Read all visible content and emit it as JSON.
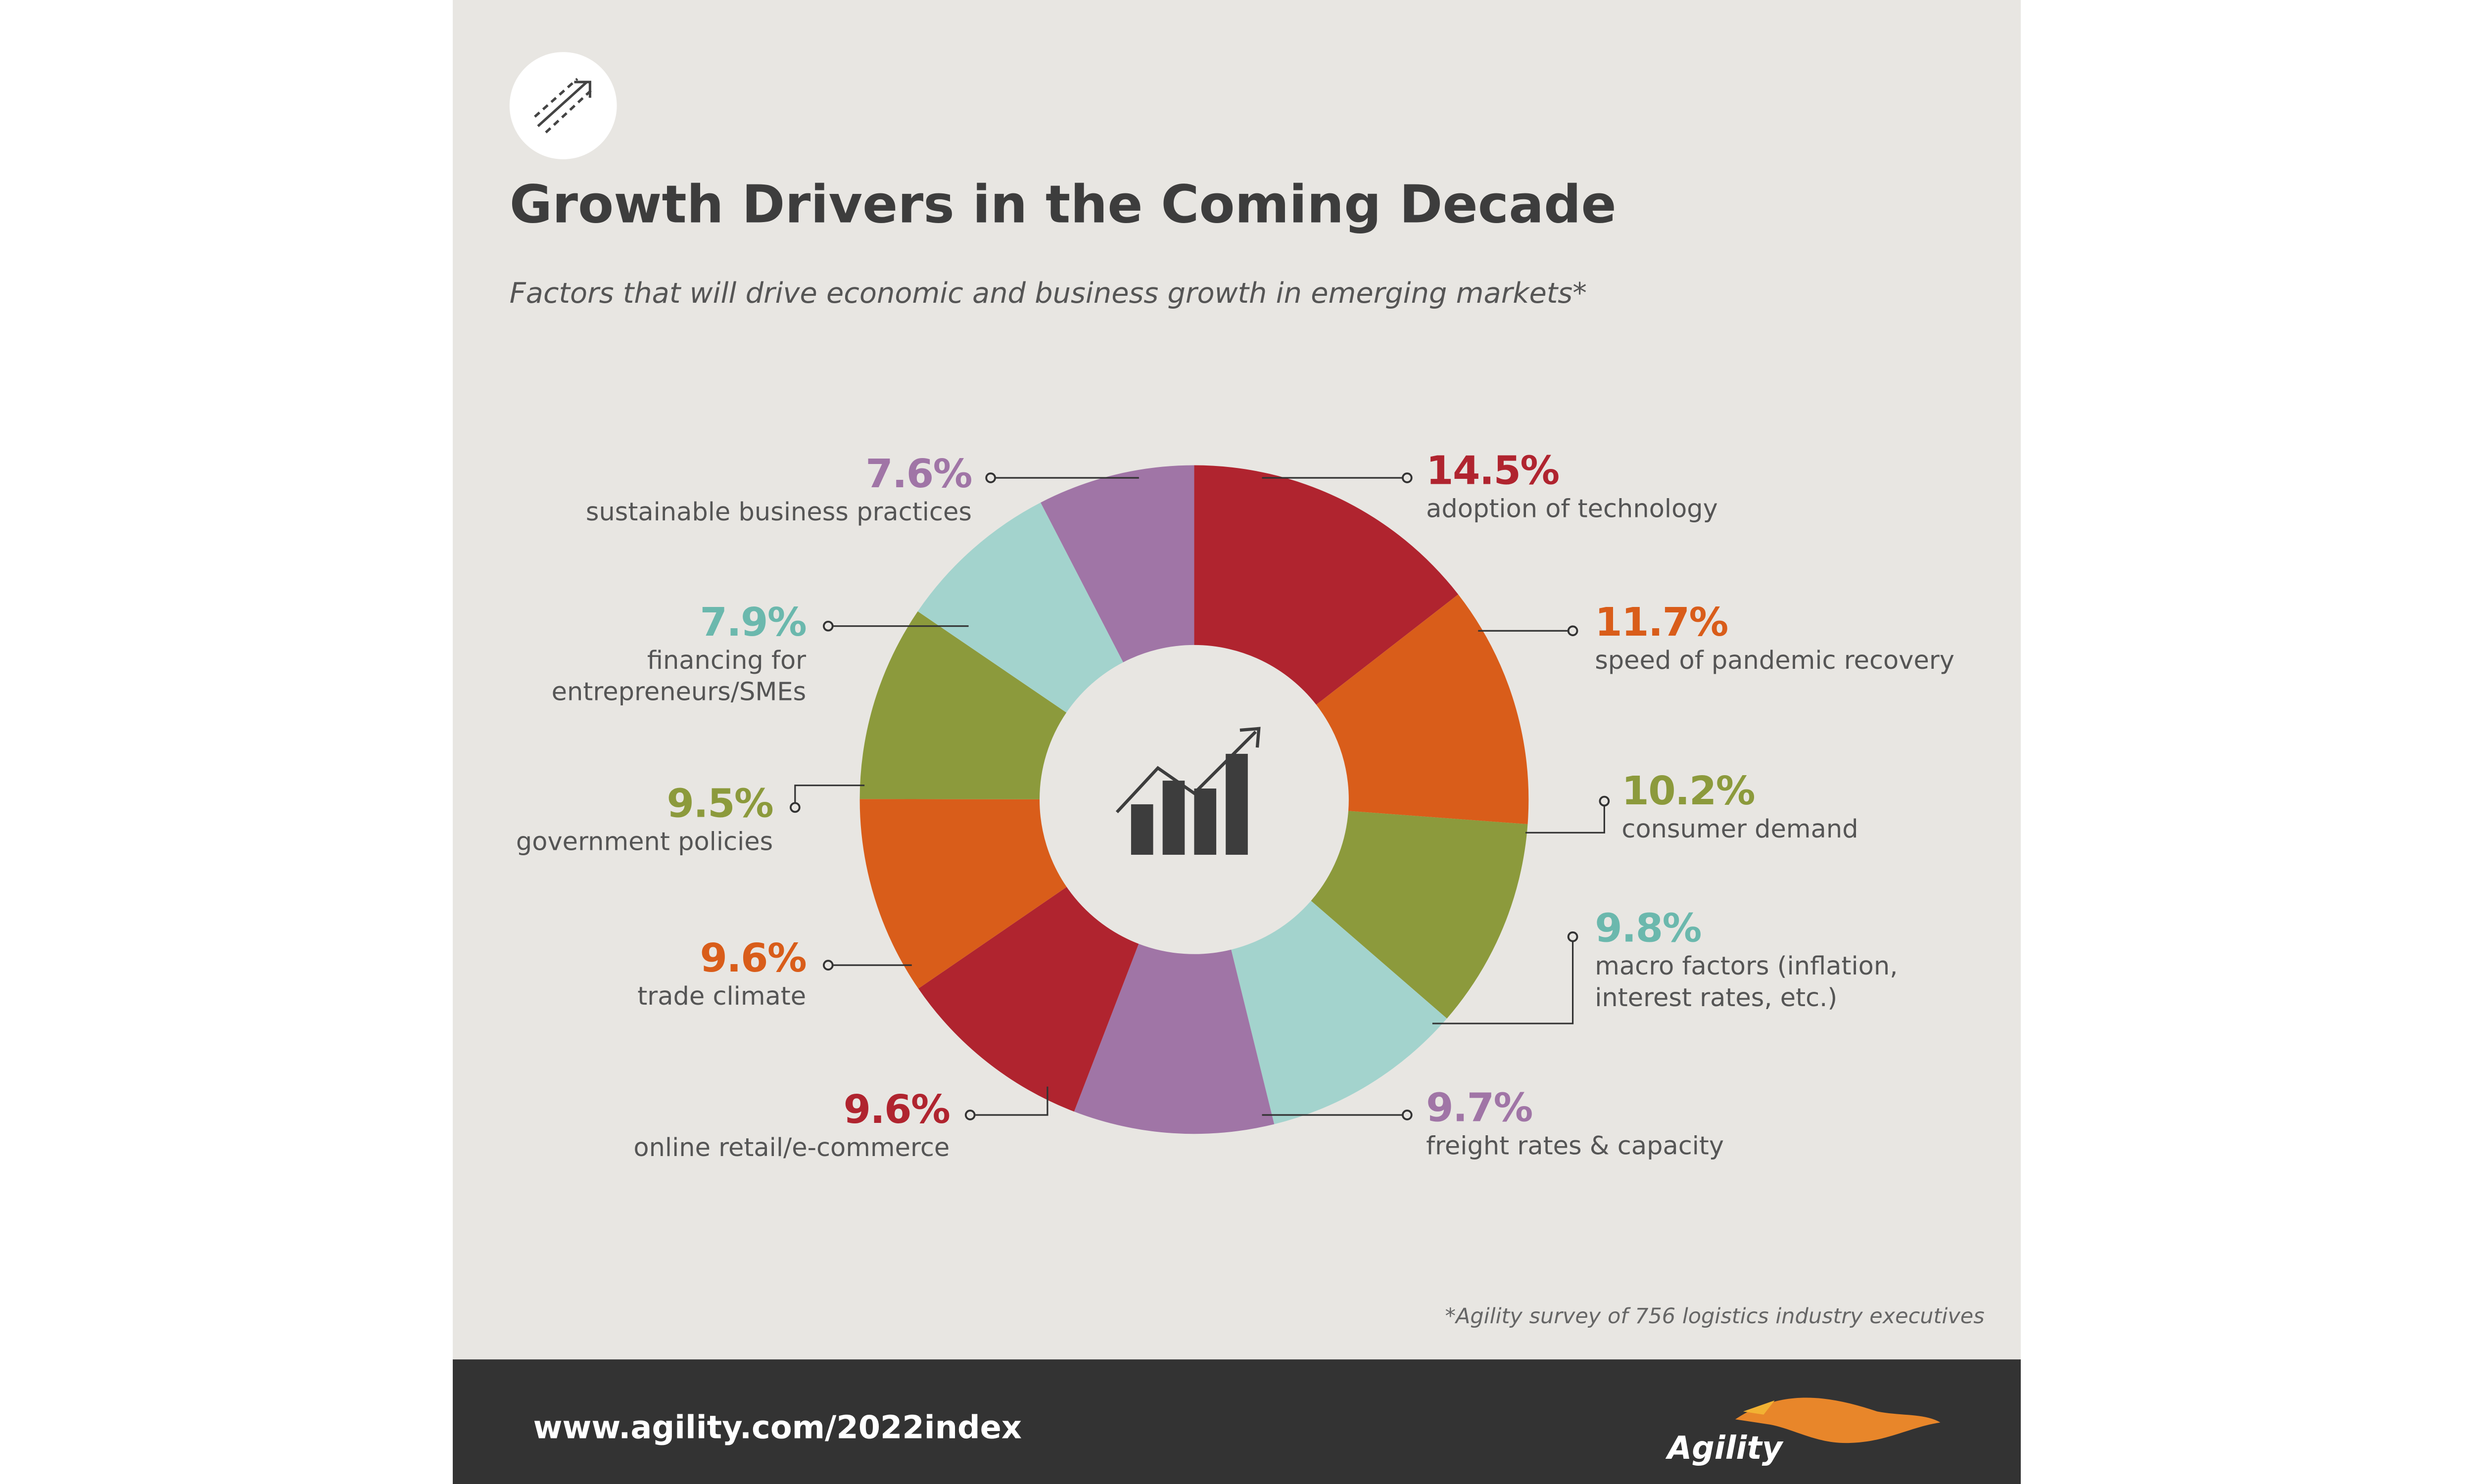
{
  "header": {
    "title": "Growth Drivers in the Coming Decade",
    "subtitle": "Factors that will drive economic and business growth in emerging markets*"
  },
  "chart_data": {
    "type": "donut",
    "categories": [
      "adoption of technology",
      "speed of pandemic recovery",
      "consumer demand",
      "macro factors (inflation, interest rates, etc.)",
      "freight rates & capacity",
      "online retail/e-commerce",
      "trade climate",
      "government policies",
      "financing for entrepreneurs/SMEs",
      "sustainable business practices"
    ],
    "values": [
      14.5,
      11.7,
      10.2,
      9.8,
      9.7,
      9.6,
      9.6,
      9.5,
      7.9,
      7.6
    ],
    "value_labels": [
      "14.5%",
      "11.7%",
      "10.2%",
      "9.8%",
      "9.7%",
      "9.6%",
      "9.6%",
      "9.5%",
      "7.9%",
      "7.6%"
    ],
    "colors": [
      "#b0242f",
      "#d95d1a",
      "#8c9a3c",
      "#a3d3cd",
      "#a075a6",
      "#b0242f",
      "#d95d1a",
      "#8c9a3c",
      "#a3d3cd",
      "#a075a6"
    ],
    "label_colors": [
      "#b0242f",
      "#d95d1a",
      "#8c9a3c",
      "#6bb8ad",
      "#a075a6",
      "#b0242f",
      "#d95d1a",
      "#8c9a3c",
      "#6bb8ad",
      "#a075a6"
    ]
  },
  "footnote": "*Agility survey of 756 logistics industry executives",
  "footer": {
    "url": "www.agility.com/2022index",
    "brand": "Agility"
  }
}
